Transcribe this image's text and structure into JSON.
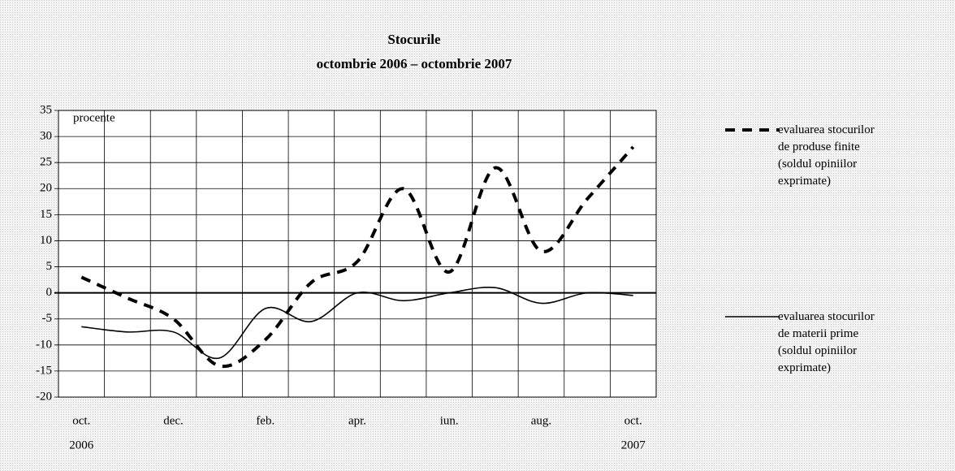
{
  "chart_data": {
    "type": "line",
    "title": "Stocurile",
    "subtitle": "octombrie 2006 – octombrie 2007",
    "y_label": "procente",
    "categories": [
      "oct.",
      null,
      "dec.",
      null,
      "feb.",
      null,
      "apr.",
      null,
      "iun.",
      null,
      "aug.",
      null,
      "oct."
    ],
    "year_labels": [
      "2006",
      null,
      null,
      null,
      null,
      null,
      null,
      null,
      null,
      null,
      null,
      null,
      "2007"
    ],
    "series": [
      {
        "name": "evaluarea stocurilor de produse finite (soldul opiniilor exprimate)",
        "color": "#000000",
        "dash": true,
        "values": [
          3,
          -1,
          -5,
          -14,
          -9,
          2,
          6,
          20,
          4,
          24,
          8,
          18,
          28
        ]
      },
      {
        "name": "evaluarea stocurilor de materii prime (soldul opiniilor exprimate)",
        "color": "#000000",
        "dash": false,
        "values": [
          -6.5,
          -7.5,
          -7.5,
          -12.5,
          -3,
          -5.5,
          0,
          -1.5,
          0,
          1,
          -2,
          0,
          -0.5
        ]
      }
    ],
    "ylim": [
      -20,
      35
    ],
    "yticks": [
      -20,
      -15,
      -10,
      -5,
      0,
      5,
      10,
      15,
      20,
      25,
      30,
      35
    ],
    "grid": true
  }
}
